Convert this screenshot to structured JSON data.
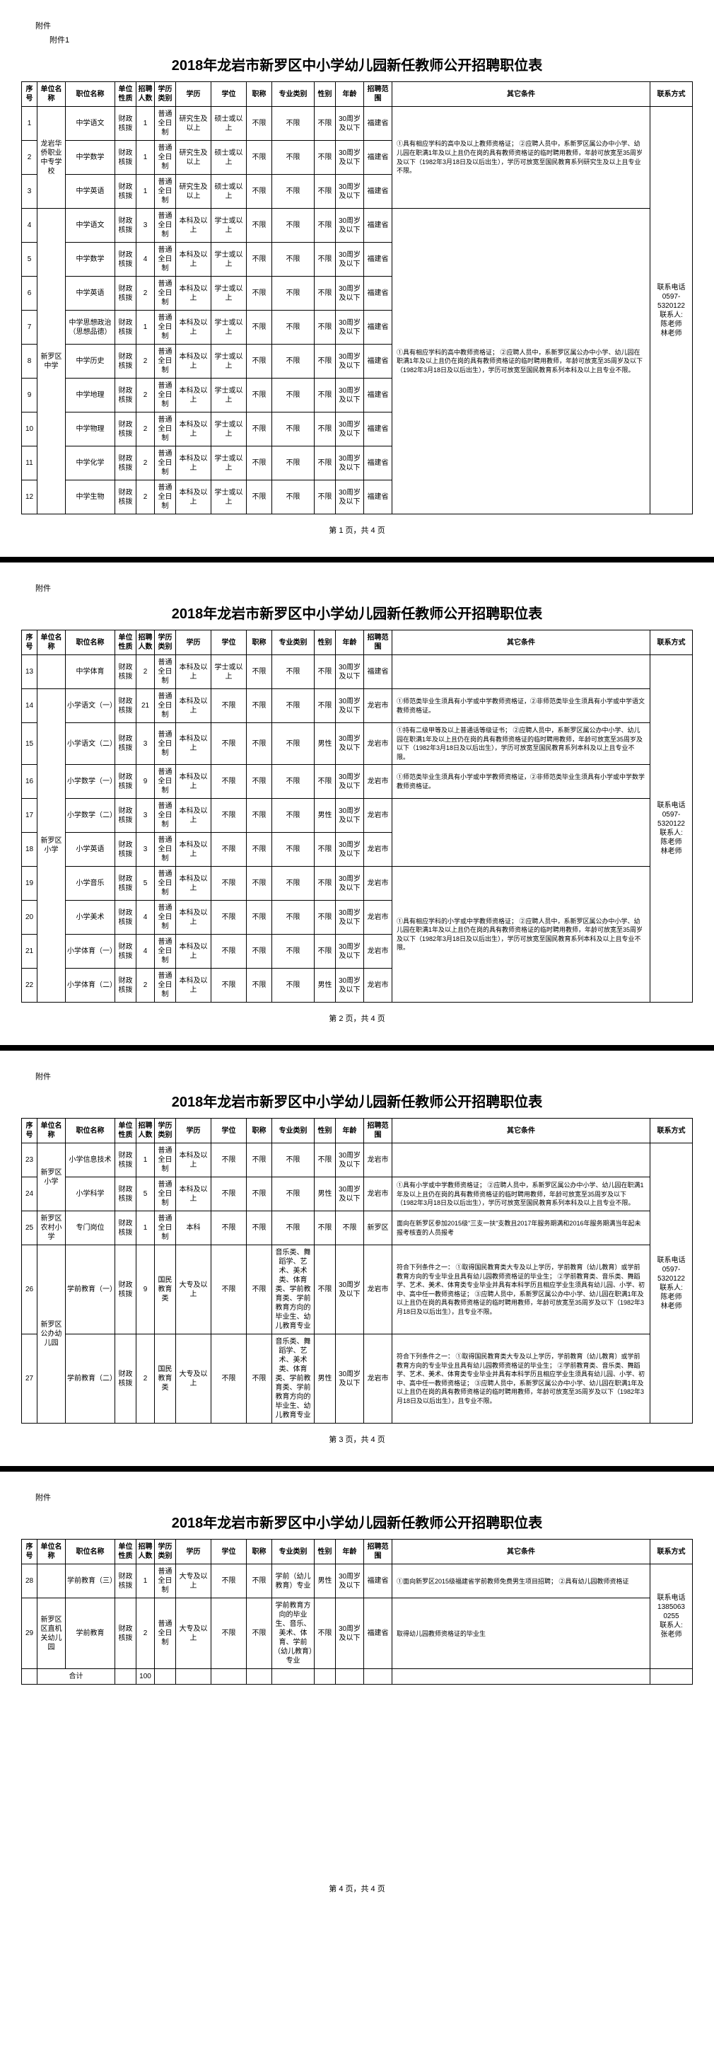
{
  "labels": {
    "attachment": "附件",
    "attachment1": "附件1",
    "title": "2018年龙岩市新罗区中小学幼儿园新任教师公开招聘职位表",
    "headers": {
      "seq": "序号",
      "unit": "单位名称",
      "pos": "职位名称",
      "nature": "单位性质",
      "count": "招聘人数",
      "degree": "学历类别",
      "edu": "学历",
      "degname": "学位",
      "title": "职称",
      "major": "专业类别",
      "gender": "性别",
      "age": "年龄",
      "scope": "招聘范围",
      "other": "其它条件",
      "contact": "联系方式",
      "total": "合计"
    },
    "page1": "第  1  页，共  4  页",
    "page2": "第  2  页，共  4  页",
    "page3": "第  3  页，共  4  页",
    "page4": "第  4  页，共  4  页"
  },
  "common": {
    "caizheng": "财政核拨",
    "putong": "普通全日制",
    "guomin": "国民教育类",
    "buxian": "不限",
    "benke": "本科及以上",
    "yanjiu": "研究生及以上",
    "shuoshi": "硕士或以上",
    "xueshi": "学士或以上",
    "dazhuan": "大专及以上",
    "benke2": "本科",
    "age30": "30周岁及以下",
    "age35": "35周岁及以下",
    "fujian": "福建省",
    "longyan": "龙岩市",
    "xinluo": "新罗区",
    "nan": "男性",
    "nv": "女性",
    "nannv": "不限\n男性"
  },
  "contact1": "联系电话\n0597-\n5320122\n联系人:\n陈老师\n林老师",
  "contact3": "联系电话\n0597-\n5320122\n联系人:\n陈老师\n林老师",
  "contact4": "联系电话\n1385063\n0255\n联系人:\n张老师",
  "other_p1a": "①具有相应学科的高中及以上教师资格证；\n②应聘人员中，系新罗区属公办中小学、幼儿园在职满1年及以上且仍在岗的具有教师资格证的临时聘用教师，年龄可放宽至35周岁及以下（1982年3月18日及以后出生），学历可放宽至国民教育系列研究生及以上且专业不限。",
  "other_p1b": "①具有相应学科的高中教师资格证；\n②应聘人员中，系新罗区属公办中小学、幼儿园在职满1年及以上且仍在岗的具有教师资格证的临时聘用教师，年龄可放宽至35周岁及以下（1982年3月18日及以后出生），学历可放宽至国民教育系列本科及以上且专业不限。",
  "other_14": "①师范类毕业生须具有小学或中学教师资格证，②非师范类毕业生须具有小学或中学语文教师资格证。",
  "other_15": "①持有二级甲等及以上普通话等级证书；\n②应聘人员中，系新罗区属公办中小学、幼儿园在职满1年及以上且仍在岗的具有教师资格证的临时聘用教师，年龄可放宽至35周岁及以下（1982年3月18日及以后出生），学历可放宽至国民教育系列本科及以上且专业不限。",
  "other_16": "①师范类毕业生须具有小学或中学教师资格证，②非师范类毕业生须具有小学或中学数学教师资格证。",
  "other_17": "②应聘人员中，系新罗区属公办中小学、幼儿园在职满1年及以上且仍在岗的具有教师资格证的临时聘用教师，年龄可放宽至35周岁及以下（1982年3月18日及以后出生），学历可放宽至国民教育系列本科及以上且专业不限。",
  "other_20": "①具有相应学科的小学或中学教师资格证；\n②应聘人员中，系新罗区属公办中小学、幼儿园在职满1年及以上且仍在岗的具有教师资格证的临时聘用教师，年龄可放宽至35周岁及以下（1982年3月18日及以后出生），学历可放宽至国民教育系列本科及以上且专业不限。",
  "other_24": "①具有小学或中学教师资格证；\n②应聘人员中，系新罗区属公办中小学、幼儿园在职满1年及以上且仍在岗的具有教师资格证的临时聘用教师，年龄可放宽至35周岁及以下（1982年3月18日及以后出生），学历可放宽至国民教育系列本科及以上且专业不限。",
  "other_25": "面向在新罗区参加2015级\"三支一扶\"支教且2017年服务期满和2016年服务期满当年起未报考核查的人员报考",
  "other_26": "符合下列条件之一：\n①取得国民教育类大专及以上学历，学前教育（幼儿教育）或学前教育方向的专业毕业且具有幼儿园教师资格证的毕业生；\n②学前教育类、音乐类、舞蹈学、艺术、美术、体育类专业毕业并具有本科学历且相应学业生须具有幼儿园、小学、初中、高中任一教师资格证；\n③应聘人员中，系新罗区属公办中小学、幼儿园在职满1年及以上且仍在岗的具有教师资格证的临时聘用教师，年龄可放宽至35周岁及以下（1982年3月18日及以后出生），且专业不限。",
  "other_27": "符合下列条件之一：\n①取得国民教育类大专及以上学历，学前教育（幼儿教育）或学前教育方向的专业毕业且具有幼儿园教师资格证的毕业生；\n②学前教育类、音乐类、舞蹈学、艺术、美术、体育类专业毕业并具有本科学历且相应学业生须具有幼儿园、小学、初中、高中任一教师资格证；\n③应聘人员中，系新罗区属公办中小学、幼儿园在职满1年及以上且仍在岗的具有教师资格证的临时聘用教师，年龄可放宽至35周岁及以下（1982年3月18日及以后出生），且专业不限。",
  "other_28": "①面向新罗区2015级福建省学前教师免费男生项目招聘；\n②具有幼儿园教师资格证",
  "other_29": "取得幼儿园教师资格证的毕业生",
  "major26": "音乐类、舞蹈学、艺术、美术类、体育类、学前教育类、学前教育方向的毕业生、幼儿教育专业",
  "major27": "音乐类、舞蹈学、艺术、美术类、体育类、学前教育类、学前教育方向的毕业生、幼儿教育专业",
  "major28": "学前（幼儿教育）专业",
  "major29": "学前教育方向的毕业生、音乐、美术、体育、学前（幼儿教育）专业",
  "rows_p1": [
    {
      "seq": "1",
      "unit": "龙岩华侨职业中专学校",
      "pos": "中学语文",
      "count": "1",
      "edu": "研究生及以上",
      "deg": "硕士或以上"
    },
    {
      "seq": "2",
      "pos": "中学数学",
      "count": "1",
      "edu": "研究生及以上",
      "deg": "硕士或以上"
    },
    {
      "seq": "3",
      "pos": "中学英语",
      "count": "1",
      "edu": "研究生及以上",
      "deg": "硕士或以上"
    },
    {
      "seq": "4",
      "unit": "新罗区中学",
      "pos": "中学语文",
      "count": "3",
      "edu": "本科及以上",
      "deg": "学士或以上"
    },
    {
      "seq": "5",
      "pos": "中学数学",
      "count": "4",
      "edu": "本科及以上",
      "deg": "学士或以上"
    },
    {
      "seq": "6",
      "pos": "中学英语",
      "count": "2",
      "edu": "本科及以上",
      "deg": "学士或以上"
    },
    {
      "seq": "7",
      "pos": "中学思想政治（思想品德）",
      "count": "1",
      "edu": "本科及以上",
      "deg": "学士或以上"
    },
    {
      "seq": "8",
      "pos": "中学历史",
      "count": "2",
      "edu": "本科及以上",
      "deg": "学士或以上"
    },
    {
      "seq": "9",
      "pos": "中学地理",
      "count": "2",
      "edu": "本科及以上",
      "deg": "学士或以上"
    },
    {
      "seq": "10",
      "pos": "中学物理",
      "count": "2",
      "edu": "本科及以上",
      "deg": "学士或以上"
    },
    {
      "seq": "11",
      "pos": "中学化学",
      "count": "2",
      "edu": "本科及以上",
      "deg": "学士或以上"
    },
    {
      "seq": "12",
      "pos": "中学生物",
      "count": "2",
      "edu": "本科及以上",
      "deg": "学士或以上"
    }
  ],
  "rows_p2": [
    {
      "seq": "13",
      "pos": "中学体育",
      "count": "2",
      "edu": "本科及以上",
      "deg": "学士或以上",
      "scope": "福建省",
      "other": ""
    },
    {
      "seq": "14",
      "unit": "新罗区小学",
      "pos": "小学语文（一）",
      "count": "21",
      "edu": "本科及以上",
      "scope": "龙岩市",
      "other": "other_14"
    },
    {
      "seq": "15",
      "pos": "小学语文（二）",
      "count": "3",
      "edu": "本科及以上",
      "gender": "男性",
      "scope": "龙岩市",
      "other": "other_15"
    },
    {
      "seq": "16",
      "pos": "小学数学（一）",
      "count": "9",
      "edu": "本科及以上",
      "scope": "龙岩市",
      "other": "other_16"
    },
    {
      "seq": "17",
      "pos": "小学数学（二）",
      "count": "3",
      "edu": "本科及以上",
      "gender": "男性",
      "scope": "龙岩市",
      "other": "other_17"
    },
    {
      "seq": "18",
      "pos": "小学英语",
      "count": "3",
      "edu": "本科及以上",
      "scope": "龙岩市"
    },
    {
      "seq": "19",
      "pos": "小学音乐",
      "count": "5",
      "edu": "本科及以上",
      "scope": "龙岩市"
    },
    {
      "seq": "20",
      "pos": "小学美术",
      "count": "4",
      "edu": "本科及以上",
      "scope": "龙岩市",
      "other": "other_20"
    },
    {
      "seq": "21",
      "pos": "小学体育（一）",
      "count": "4",
      "edu": "本科及以上",
      "scope": "龙岩市"
    },
    {
      "seq": "22",
      "pos": "小学体育（二）",
      "count": "2",
      "edu": "本科及以上",
      "gender": "男性",
      "scope": "龙岩市"
    }
  ],
  "total": "100"
}
